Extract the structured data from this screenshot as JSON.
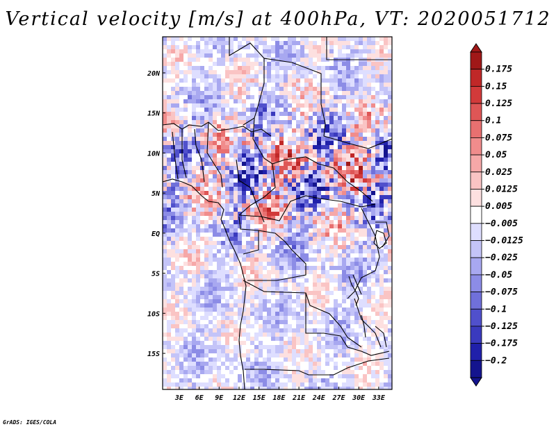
{
  "title": "Vertical velocity [m/s] at 400hPa, VT: 2020051712",
  "credit": "GrADS: IGES/COLA",
  "map": {
    "lon_labels": [
      "3E",
      "6E",
      "9E",
      "12E",
      "15E",
      "18E",
      "21E",
      "24E",
      "27E",
      "30E",
      "33E"
    ],
    "lon_values": [
      3,
      6,
      9,
      12,
      15,
      18,
      21,
      24,
      27,
      30,
      33
    ],
    "lat_labels": [
      "20N",
      "15N",
      "10N",
      "5N",
      "EQ",
      "5S",
      "10S",
      "15S"
    ],
    "lat_values": [
      20,
      15,
      10,
      5,
      0,
      -5,
      -10,
      -15
    ],
    "lon_range": [
      0.5,
      35
    ],
    "lat_range": [
      -19.5,
      24.5
    ]
  },
  "colorbar": {
    "labels": [
      "0.175",
      "0.15",
      "0.125",
      "0.1",
      "0.075",
      "0.05",
      "0.025",
      "0.0125",
      "0.005",
      "−0.005",
      "−0.0125",
      "−0.025",
      "−0.05",
      "−0.075",
      "−0.1",
      "−0.125",
      "−0.175",
      "−0.2"
    ],
    "colors": [
      "#a01818",
      "#c02828",
      "#d23a3a",
      "#de5656",
      "#e87070",
      "#f08c8c",
      "#f6a8a8",
      "#fac4c4",
      "#fde0e0",
      "#ffffff",
      "#dedeff",
      "#c4c4f8",
      "#a8a8f0",
      "#8c8ce6",
      "#7070da",
      "#5050cc",
      "#3a3abe",
      "#2020aa",
      "#14148e"
    ]
  }
}
